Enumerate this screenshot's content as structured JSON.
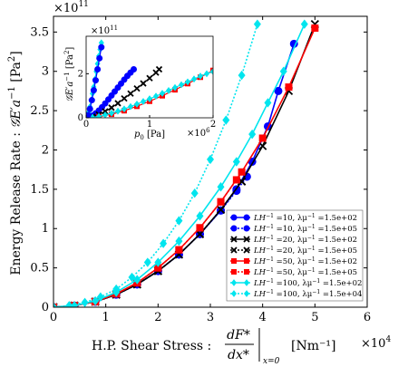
{
  "chart_data": {
    "type": "line",
    "main": {
      "ylabel_text": "Energy Release Rate : 𝒢E′a⁻¹ [Pa²]",
      "ylabel_part_a": "Energy Release Rate : ",
      "ylabel_part_b": "𝒢E′a",
      "ylabel_part_c": "−1",
      "ylabel_part_d": " [Pa",
      "ylabel_part_e": "2",
      "ylabel_part_f": "]",
      "xlabel_prefix": "H.P. Shear Stress :",
      "xlabel_frac_num": "dF*",
      "xlabel_frac_den": "dx*",
      "xlabel_subscript": "x=0",
      "xlabel_units": "[Nm⁻¹]",
      "x_multiplier_base": "×10",
      "x_multiplier_exp": "4",
      "y_multiplier_base": "×10",
      "y_multiplier_exp": "11",
      "xlim": [
        0,
        6
      ],
      "ylim": [
        0,
        3.7
      ],
      "xticks": [
        "0",
        "1",
        "2",
        "3",
        "4",
        "5",
        "6"
      ],
      "yticks": [
        "0",
        "0.5",
        "1",
        "1.5",
        "2",
        "2.5",
        "3",
        "3.5"
      ],
      "series": [
        {
          "name": "LH⁻¹=10, λμ⁻¹=1.5e+02",
          "color": "#0000ff",
          "marker": "circle",
          "dash": "solid",
          "x": [
            0.0,
            0.4,
            0.8,
            1.2,
            1.6,
            2.0,
            2.4,
            2.8,
            3.2,
            3.5,
            3.8,
            4.1,
            4.3,
            4.6
          ],
          "y": [
            0.0,
            0.02,
            0.07,
            0.16,
            0.29,
            0.46,
            0.67,
            0.93,
            1.23,
            1.5,
            1.85,
            2.3,
            2.75,
            3.35
          ]
        },
        {
          "name": "LH⁻¹=10, λμ⁻¹=1.5e+05",
          "color": "#0000ff",
          "marker": "circle",
          "dash": "dotted",
          "x": [
            0.0,
            0.4,
            0.8,
            1.2,
            1.6,
            2.0,
            2.4,
            2.8,
            3.2,
            3.5,
            3.7
          ],
          "y": [
            0.0,
            0.02,
            0.07,
            0.16,
            0.29,
            0.46,
            0.67,
            0.93,
            1.23,
            1.48,
            1.66
          ]
        },
        {
          "name": "LH⁻¹=20, λμ⁻¹=1.5e+02",
          "color": "#000000",
          "marker": "x",
          "dash": "solid",
          "x": [
            0.0,
            0.4,
            0.8,
            1.2,
            1.6,
            2.0,
            2.4,
            2.8,
            3.2,
            3.6,
            4.0,
            4.5,
            5.0
          ],
          "y": [
            0.0,
            0.02,
            0.07,
            0.16,
            0.29,
            0.46,
            0.67,
            0.93,
            1.24,
            1.6,
            2.05,
            2.75,
            3.6
          ]
        },
        {
          "name": "LH⁻¹=20, λμ⁻¹=1.5e+05",
          "color": "#000000",
          "marker": "x",
          "dash": "dotted",
          "x": [
            0.0,
            0.4,
            0.8,
            1.2,
            1.6,
            2.0,
            2.4,
            2.8,
            3.2,
            3.6
          ],
          "y": [
            0.0,
            0.02,
            0.07,
            0.16,
            0.29,
            0.46,
            0.67,
            0.93,
            1.24,
            1.6
          ]
        },
        {
          "name": "LH⁻¹=50, λμ⁻¹=1.5e+02",
          "color": "#ff0000",
          "marker": "square",
          "dash": "solid",
          "x": [
            0.0,
            0.4,
            0.8,
            1.2,
            1.6,
            2.0,
            2.4,
            2.8,
            3.2,
            3.6,
            4.0,
            4.5,
            5.0
          ],
          "y": [
            0.0,
            0.02,
            0.07,
            0.17,
            0.31,
            0.5,
            0.73,
            1.01,
            1.34,
            1.72,
            2.15,
            2.8,
            3.55
          ]
        },
        {
          "name": "LH⁻¹=50, λμ⁻¹=1.5e+05",
          "color": "#ff0000",
          "marker": "square",
          "dash": "dotted",
          "x": [
            0.0,
            0.4,
            0.8,
            1.2,
            1.6,
            2.0,
            2.4,
            2.8,
            3.2,
            3.5
          ],
          "y": [
            0.0,
            0.02,
            0.07,
            0.17,
            0.31,
            0.5,
            0.73,
            1.01,
            1.34,
            1.62
          ]
        },
        {
          "name": "LH⁻¹=100, λμ⁻¹=1.5e+02",
          "color": "#00e5ee",
          "marker": "diamond",
          "dash": "solid",
          "x": [
            0.0,
            0.4,
            0.8,
            1.2,
            1.6,
            2.0,
            2.4,
            2.8,
            3.2,
            3.5,
            3.8,
            4.1,
            4.4,
            4.8
          ],
          "y": [
            0.0,
            0.02,
            0.08,
            0.19,
            0.35,
            0.57,
            0.84,
            1.16,
            1.53,
            1.85,
            2.2,
            2.6,
            3.0,
            3.6
          ]
        },
        {
          "name": "LH⁻¹=100, λμ⁻¹=1.5e+04",
          "color": "#00e5ee",
          "marker": "diamond",
          "dash": "dotted",
          "x": [
            0.0,
            0.3,
            0.6,
            0.9,
            1.2,
            1.5,
            1.8,
            2.1,
            2.4,
            2.7,
            3.0,
            3.3,
            3.6,
            3.9
          ],
          "y": [
            0.0,
            0.02,
            0.06,
            0.13,
            0.23,
            0.38,
            0.57,
            0.81,
            1.1,
            1.45,
            1.88,
            2.38,
            2.95,
            3.6
          ]
        }
      ],
      "legend_placement": "lower-right",
      "legend_labels": [
        {
          "a": "LH",
          "b": "−1",
          "c": " =10,  λμ",
          "d": "−1",
          "e": " =1.5e+02"
        },
        {
          "a": "LH",
          "b": "−1",
          "c": " =10,  λμ",
          "d": "−1",
          "e": " =1.5e+05"
        },
        {
          "a": "LH",
          "b": "−1",
          "c": " =20,  λμ",
          "d": "−1",
          "e": " =1.5e+02"
        },
        {
          "a": "LH",
          "b": "−1",
          "c": " =20,  λμ",
          "d": "−1",
          "e": " =1.5e+05"
        },
        {
          "a": "LH",
          "b": "−1",
          "c": " =50,  λμ",
          "d": "−1",
          "e": " =1.5e+02"
        },
        {
          "a": "LH",
          "b": "−1",
          "c": " =50,  λμ",
          "d": "−1",
          "e": " =1.5e+05"
        },
        {
          "a": "LH",
          "b": "−1",
          "c": " =100,  λμ",
          "d": "−1",
          "e": " =1.5e+02"
        },
        {
          "a": "LH",
          "b": "−1",
          "c": " =100,  λμ",
          "d": "−1",
          "e": " =1.5e+04"
        }
      ]
    },
    "inset": {
      "xlabel_a": "p",
      "xlabel_b": "0",
      "xlabel_c": " [Pa]",
      "ylabel_a": "𝒢E′a",
      "ylabel_b": "−1",
      "ylabel_c": " [Pa",
      "ylabel_d": "2",
      "ylabel_e": "]",
      "x_multiplier_base": "×10",
      "x_multiplier_exp": "6",
      "y_multiplier_base": "×10",
      "y_multiplier_exp": "11",
      "xlim": [
        0,
        2
      ],
      "ylim": [
        0,
        3.7
      ],
      "xticks": [
        "0",
        "1",
        "2"
      ],
      "yticks": [
        "0",
        "2"
      ],
      "series": [
        {
          "name": "LH⁻¹=10",
          "color": "#0000ff",
          "marker": "circle",
          "x": [
            0,
            0.05,
            0.1,
            0.15,
            0.2,
            0.25,
            0.3,
            0.35,
            0.4,
            0.45,
            0.5,
            0.55,
            0.6,
            0.65,
            0.7,
            0.75
          ],
          "y": [
            0,
            0.03,
            0.1,
            0.2,
            0.33,
            0.48,
            0.65,
            0.83,
            1.01,
            1.19,
            1.37,
            1.55,
            1.73,
            1.9,
            2.05,
            2.2
          ]
        },
        {
          "name": "LH⁻¹=20",
          "color": "#000000",
          "marker": "x",
          "x": [
            0,
            0.1,
            0.2,
            0.3,
            0.4,
            0.5,
            0.6,
            0.7,
            0.8,
            0.9,
            1.0,
            1.1,
            1.15
          ],
          "y": [
            0,
            0.05,
            0.15,
            0.29,
            0.46,
            0.66,
            0.88,
            1.1,
            1.33,
            1.56,
            1.8,
            2.05,
            2.2
          ]
        },
        {
          "name": "LH⁻¹=50",
          "color": "#ff0000",
          "marker": "square",
          "x": [
            0,
            0.2,
            0.4,
            0.6,
            0.8,
            1.0,
            1.2,
            1.4,
            1.6,
            1.8,
            2.0
          ],
          "y": [
            0,
            0.05,
            0.16,
            0.32,
            0.52,
            0.75,
            1.0,
            1.27,
            1.55,
            1.84,
            2.15
          ]
        },
        {
          "name": "LH⁻¹=100",
          "color": "#00e5ee",
          "marker": "diamond",
          "x": [
            0,
            0.1,
            0.2,
            0.3,
            0.4,
            0.5,
            0.6,
            0.7,
            0.8,
            0.9,
            1.0,
            1.1,
            1.2,
            1.3,
            1.4,
            1.5,
            1.6,
            1.7,
            1.8,
            1.9,
            2.0
          ],
          "y": [
            0,
            0.02,
            0.06,
            0.13,
            0.21,
            0.3,
            0.4,
            0.51,
            0.62,
            0.74,
            0.86,
            0.98,
            1.11,
            1.24,
            1.37,
            1.5,
            1.63,
            1.76,
            1.89,
            2.0,
            2.1
          ]
        },
        {
          "name": "LH⁻¹=100 steep",
          "color": "#00e5ee",
          "marker": "diamond",
          "x": [
            0,
            0.02,
            0.04,
            0.06,
            0.08,
            0.1,
            0.12,
            0.14,
            0.16,
            0.18,
            0.2,
            0.22,
            0.24
          ],
          "y": [
            0,
            0.08,
            0.25,
            0.5,
            0.8,
            1.1,
            1.4,
            1.75,
            2.1,
            2.45,
            2.8,
            3.1,
            3.4
          ]
        },
        {
          "name": "LH⁻¹=10 steep",
          "color": "#0000ff",
          "marker": "circle",
          "x": [
            0,
            0.03,
            0.06,
            0.09,
            0.12,
            0.15,
            0.18,
            0.21,
            0.24
          ],
          "y": [
            0,
            0.12,
            0.4,
            0.8,
            1.25,
            1.7,
            2.2,
            2.7,
            3.2
          ]
        }
      ]
    }
  }
}
